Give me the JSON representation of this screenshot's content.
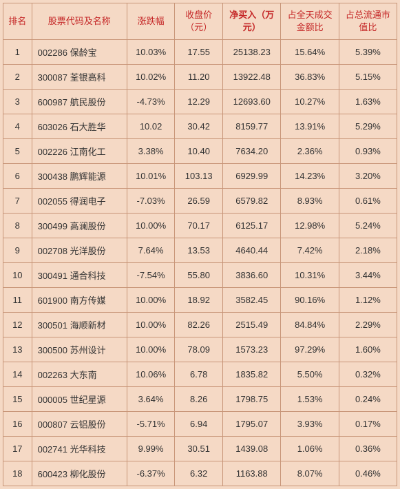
{
  "columns": [
    {
      "key": "rank",
      "label": "排名",
      "cls": "col-rank",
      "highlight": false
    },
    {
      "key": "stock",
      "label": "股票代码及名称",
      "cls": "col-stock",
      "highlight": false
    },
    {
      "key": "change",
      "label": "涨跌幅",
      "cls": "col-change",
      "highlight": false
    },
    {
      "key": "close",
      "label": "收盘价（元）",
      "cls": "col-close",
      "highlight": false
    },
    {
      "key": "netbuy",
      "label": "净买入（万元）",
      "cls": "col-netbuy",
      "highlight": true
    },
    {
      "key": "turnover",
      "label": "占全天成交金额比",
      "cls": "col-turnover",
      "highlight": false
    },
    {
      "key": "float",
      "label": "占总流通市值比",
      "cls": "col-float",
      "highlight": false
    }
  ],
  "rows": [
    {
      "rank": "1",
      "stock": "002286  保龄宝",
      "change": "10.03%",
      "close": "17.55",
      "netbuy": "25138.23",
      "turnover": "15.64%",
      "float": "5.39%"
    },
    {
      "rank": "2",
      "stock": "300087  荃银高科",
      "change": "10.02%",
      "close": "11.20",
      "netbuy": "13922.48",
      "turnover": "36.83%",
      "float": "5.15%"
    },
    {
      "rank": "3",
      "stock": "600987  航民股份",
      "change": "-4.73%",
      "close": "12.29",
      "netbuy": "12693.60",
      "turnover": "10.27%",
      "float": "1.63%"
    },
    {
      "rank": "4",
      "stock": "603026  石大胜华",
      "change": "10.02",
      "close": "30.42",
      "netbuy": "8159.77",
      "turnover": "13.91%",
      "float": "5.29%"
    },
    {
      "rank": "5",
      "stock": "002226  江南化工",
      "change": "3.38%",
      "close": "10.40",
      "netbuy": "7634.20",
      "turnover": "2.36%",
      "float": "0.93%"
    },
    {
      "rank": "6",
      "stock": "300438  鹏辉能源",
      "change": "10.01%",
      "close": "103.13",
      "netbuy": "6929.99",
      "turnover": "14.23%",
      "float": "3.20%"
    },
    {
      "rank": "7",
      "stock": "002055  得润电子",
      "change": "-7.03%",
      "close": "26.59",
      "netbuy": "6579.82",
      "turnover": "8.93%",
      "float": "0.61%"
    },
    {
      "rank": "8",
      "stock": "300499  高澜股份",
      "change": "10.00%",
      "close": "70.17",
      "netbuy": "6125.17",
      "turnover": "12.98%",
      "float": "5.24%"
    },
    {
      "rank": "9",
      "stock": "002708  光洋股份",
      "change": "7.64%",
      "close": "13.53",
      "netbuy": "4640.44",
      "turnover": "7.42%",
      "float": "2.18%"
    },
    {
      "rank": "10",
      "stock": "300491  通合科技",
      "change": "-7.54%",
      "close": "55.80",
      "netbuy": "3836.60",
      "turnover": "10.31%",
      "float": "3.44%"
    },
    {
      "rank": "11",
      "stock": "601900  南方传媒",
      "change": "10.00%",
      "close": "18.92",
      "netbuy": "3582.45",
      "turnover": "90.16%",
      "float": "1.12%"
    },
    {
      "rank": "12",
      "stock": "300501  海顺新材",
      "change": "10.00%",
      "close": "82.26",
      "netbuy": "2515.49",
      "turnover": "84.84%",
      "float": "2.29%"
    },
    {
      "rank": "13",
      "stock": "300500  苏州设计",
      "change": "10.00%",
      "close": "78.09",
      "netbuy": "1573.23",
      "turnover": "97.29%",
      "float": "1.60%"
    },
    {
      "rank": "14",
      "stock": "002263  大东南",
      "change": "10.06%",
      "close": "6.78",
      "netbuy": "1835.82",
      "turnover": "5.50%",
      "float": "0.32%"
    },
    {
      "rank": "15",
      "stock": "000005  世纪星源",
      "change": "3.64%",
      "close": "8.26",
      "netbuy": "1798.75",
      "turnover": "1.53%",
      "float": "0.24%"
    },
    {
      "rank": "16",
      "stock": "000807  云铝股份",
      "change": "-5.71%",
      "close": "6.94",
      "netbuy": "1795.07",
      "turnover": "3.93%",
      "float": "0.17%"
    },
    {
      "rank": "17",
      "stock": "002741  光华科技",
      "change": "9.99%",
      "close": "30.51",
      "netbuy": "1439.08",
      "turnover": "1.06%",
      "float": "0.36%"
    },
    {
      "rank": "18",
      "stock": "600423  柳化股份",
      "change": "-6.37%",
      "close": "6.32",
      "netbuy": "1163.88",
      "turnover": "8.07%",
      "float": "0.46%"
    }
  ],
  "colors": {
    "background": "#f5d9c5",
    "border": "#c89578",
    "header_text": "#c52828",
    "body_text": "#333333"
  }
}
